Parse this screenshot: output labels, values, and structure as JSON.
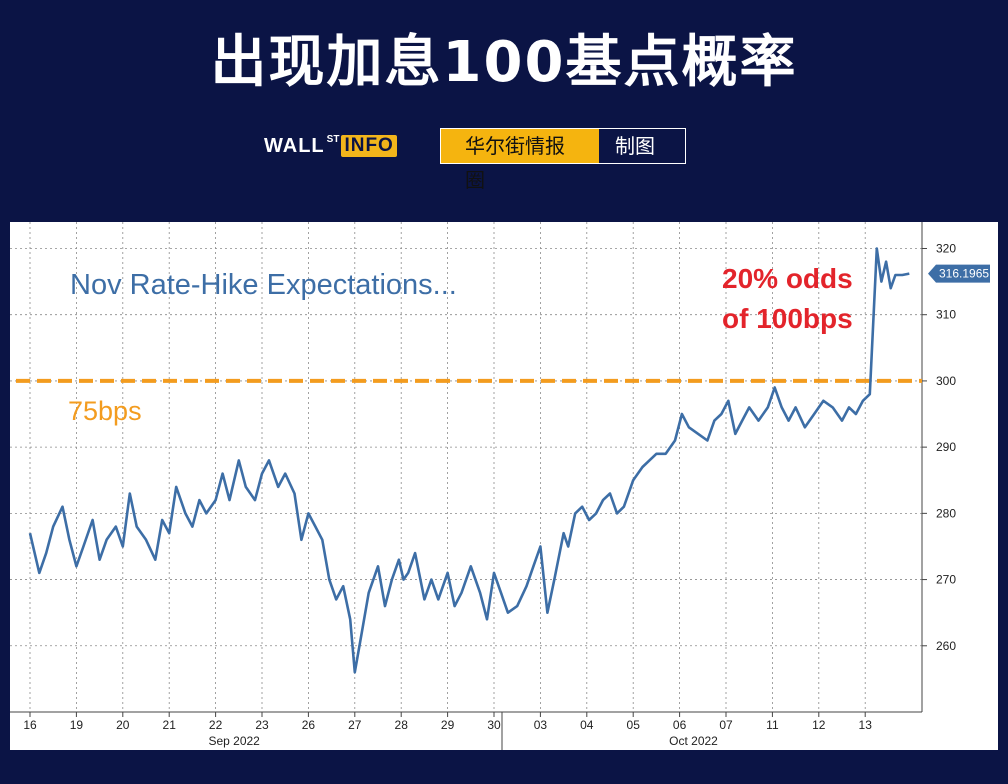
{
  "header": {
    "title": "出现加息100基点概率",
    "logo_wall": "WALL",
    "logo_st": "ST",
    "logo_info": "INFO",
    "badge_main": "华尔街情报圈",
    "badge_sub": "制图"
  },
  "colors": {
    "background": "#0b1445",
    "line": "#3d6ea6",
    "threshold": "#f39c1f",
    "annotation_red": "#e3242b",
    "title_blue": "#3d6ea6",
    "badge": "#f5b40f"
  },
  "chart_data": {
    "type": "line",
    "title": "Nov Rate-Hike Expectations...",
    "xlabel": "",
    "ylabel": "",
    "ylim": [
      250,
      324
    ],
    "y_ticks": [
      "260",
      "270",
      "280",
      "290",
      "300",
      "310",
      "320"
    ],
    "x_day_labels": [
      "16",
      "19",
      "20",
      "21",
      "22",
      "23",
      "26",
      "27",
      "28",
      "29",
      "30",
      "03",
      "04",
      "05",
      "06",
      "07",
      "11",
      "12",
      "13"
    ],
    "x_month_labels": [
      "Sep 2022",
      "Oct 2022"
    ],
    "grid": true,
    "series": [
      {
        "x": [
          0.0,
          0.2,
          0.35,
          0.5,
          0.7,
          0.85,
          1.0,
          1.15,
          1.35,
          1.5,
          1.65,
          1.85,
          2.0,
          2.15,
          2.3,
          2.5,
          2.7,
          2.85,
          3.0,
          3.15,
          3.35,
          3.5,
          3.65,
          3.8,
          4.0,
          4.15,
          4.3,
          4.5,
          4.65,
          4.85,
          5.0,
          5.15,
          5.35,
          5.5,
          5.7,
          5.85,
          6.0,
          6.15,
          6.3,
          6.45,
          6.6,
          6.75,
          6.9,
          7.0,
          7.15,
          7.3,
          7.5,
          7.65,
          7.8,
          7.95,
          8.05,
          8.15,
          8.3,
          8.5,
          8.65,
          8.8,
          9.0,
          9.15,
          9.3,
          9.5,
          9.7,
          9.85,
          10.0,
          10.15,
          10.3,
          10.5,
          10.7,
          10.85,
          11.0,
          11.15,
          11.3,
          11.5,
          11.6,
          11.75,
          11.9,
          12.05,
          12.2,
          12.35,
          12.5,
          12.65,
          12.8,
          13.0,
          13.2,
          13.35,
          13.5,
          13.7,
          13.9,
          14.05,
          14.2,
          14.4,
          14.6,
          14.75,
          14.9,
          15.05,
          15.2,
          15.35,
          15.5,
          15.7,
          15.9,
          16.05,
          16.2,
          16.35,
          16.5,
          16.7,
          16.9,
          17.1,
          17.3,
          17.5,
          17.65,
          17.8,
          17.95,
          18.1,
          18.25,
          18.35,
          18.45,
          18.55,
          18.65,
          18.8,
          18.95
        ],
        "values": [
          277,
          271,
          274,
          278,
          281,
          276,
          272,
          275,
          279,
          273,
          276,
          278,
          275,
          283,
          278,
          276,
          273,
          279,
          277,
          284,
          280,
          278,
          282,
          280,
          282,
          286,
          282,
          288,
          284,
          282,
          286,
          288,
          284,
          286,
          283,
          276,
          280,
          278,
          276,
          270,
          267,
          269,
          264,
          256,
          262,
          268,
          272,
          266,
          270,
          273,
          270,
          271,
          274,
          267,
          270,
          267,
          271,
          266,
          268,
          272,
          268,
          264,
          271,
          268,
          265,
          266,
          269,
          272,
          275,
          265,
          270,
          277,
          275,
          280,
          281,
          279,
          280,
          282,
          283,
          280,
          281,
          285,
          287,
          288,
          289,
          289,
          291,
          295,
          293,
          292,
          291,
          294,
          295,
          297,
          292,
          294,
          296,
          294,
          296,
          299,
          296,
          294,
          296,
          293,
          295,
          297,
          296,
          294,
          296,
          295,
          297,
          298,
          320,
          315,
          318,
          314,
          316,
          316,
          316.2
        ]
      }
    ],
    "last_value_label": "316.1965",
    "threshold": {
      "value": 300,
      "label": "75bps"
    },
    "annotation": {
      "line1": "20% odds",
      "line2": "of 100bps"
    }
  }
}
